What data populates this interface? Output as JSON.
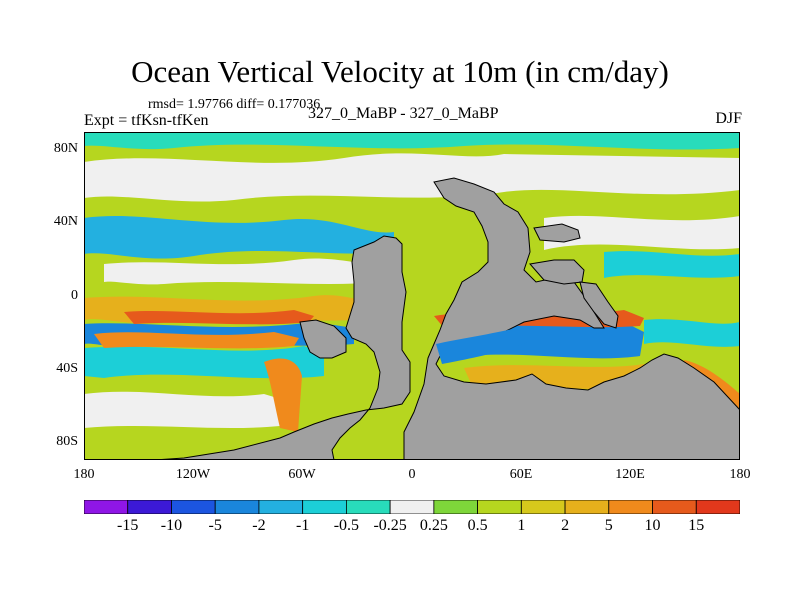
{
  "title": "Ocean Vertical Velocity at 10m (in cm/day)",
  "stats": "rmsd= 1.97766  diff= 0.177036",
  "experiment": "Expt = tfKsn-tfKen",
  "runs": "327_0_MaBP - 327_0_MaBP",
  "season": "DJF",
  "map": {
    "variable": "Ocean vertical velocity at 10m",
    "units": "cm/day",
    "lat_ticks": [
      "80N",
      "40N",
      "0",
      "40S",
      "80S"
    ],
    "lon_ticks": [
      "180",
      "120W",
      "60W",
      "0",
      "60E",
      "120E",
      "180"
    ],
    "land_color": "#a0a0a0"
  },
  "colorbar": {
    "colors": [
      "#8f16e6",
      "#3c19d6",
      "#1c55e0",
      "#1a86dc",
      "#23b0e0",
      "#1ccfd7",
      "#28dcbb",
      "#f0f0f0",
      "#7ed63a",
      "#b6d61f",
      "#d6c81c",
      "#e6b01c",
      "#f08a1c",
      "#e65a1c",
      "#e2381c"
    ],
    "labels": [
      "-15",
      "-10",
      "-5",
      "-2",
      "-1",
      "-0.5",
      "-0.25",
      "0.25",
      "0.5",
      "1",
      "2",
      "5",
      "10",
      "15"
    ]
  }
}
